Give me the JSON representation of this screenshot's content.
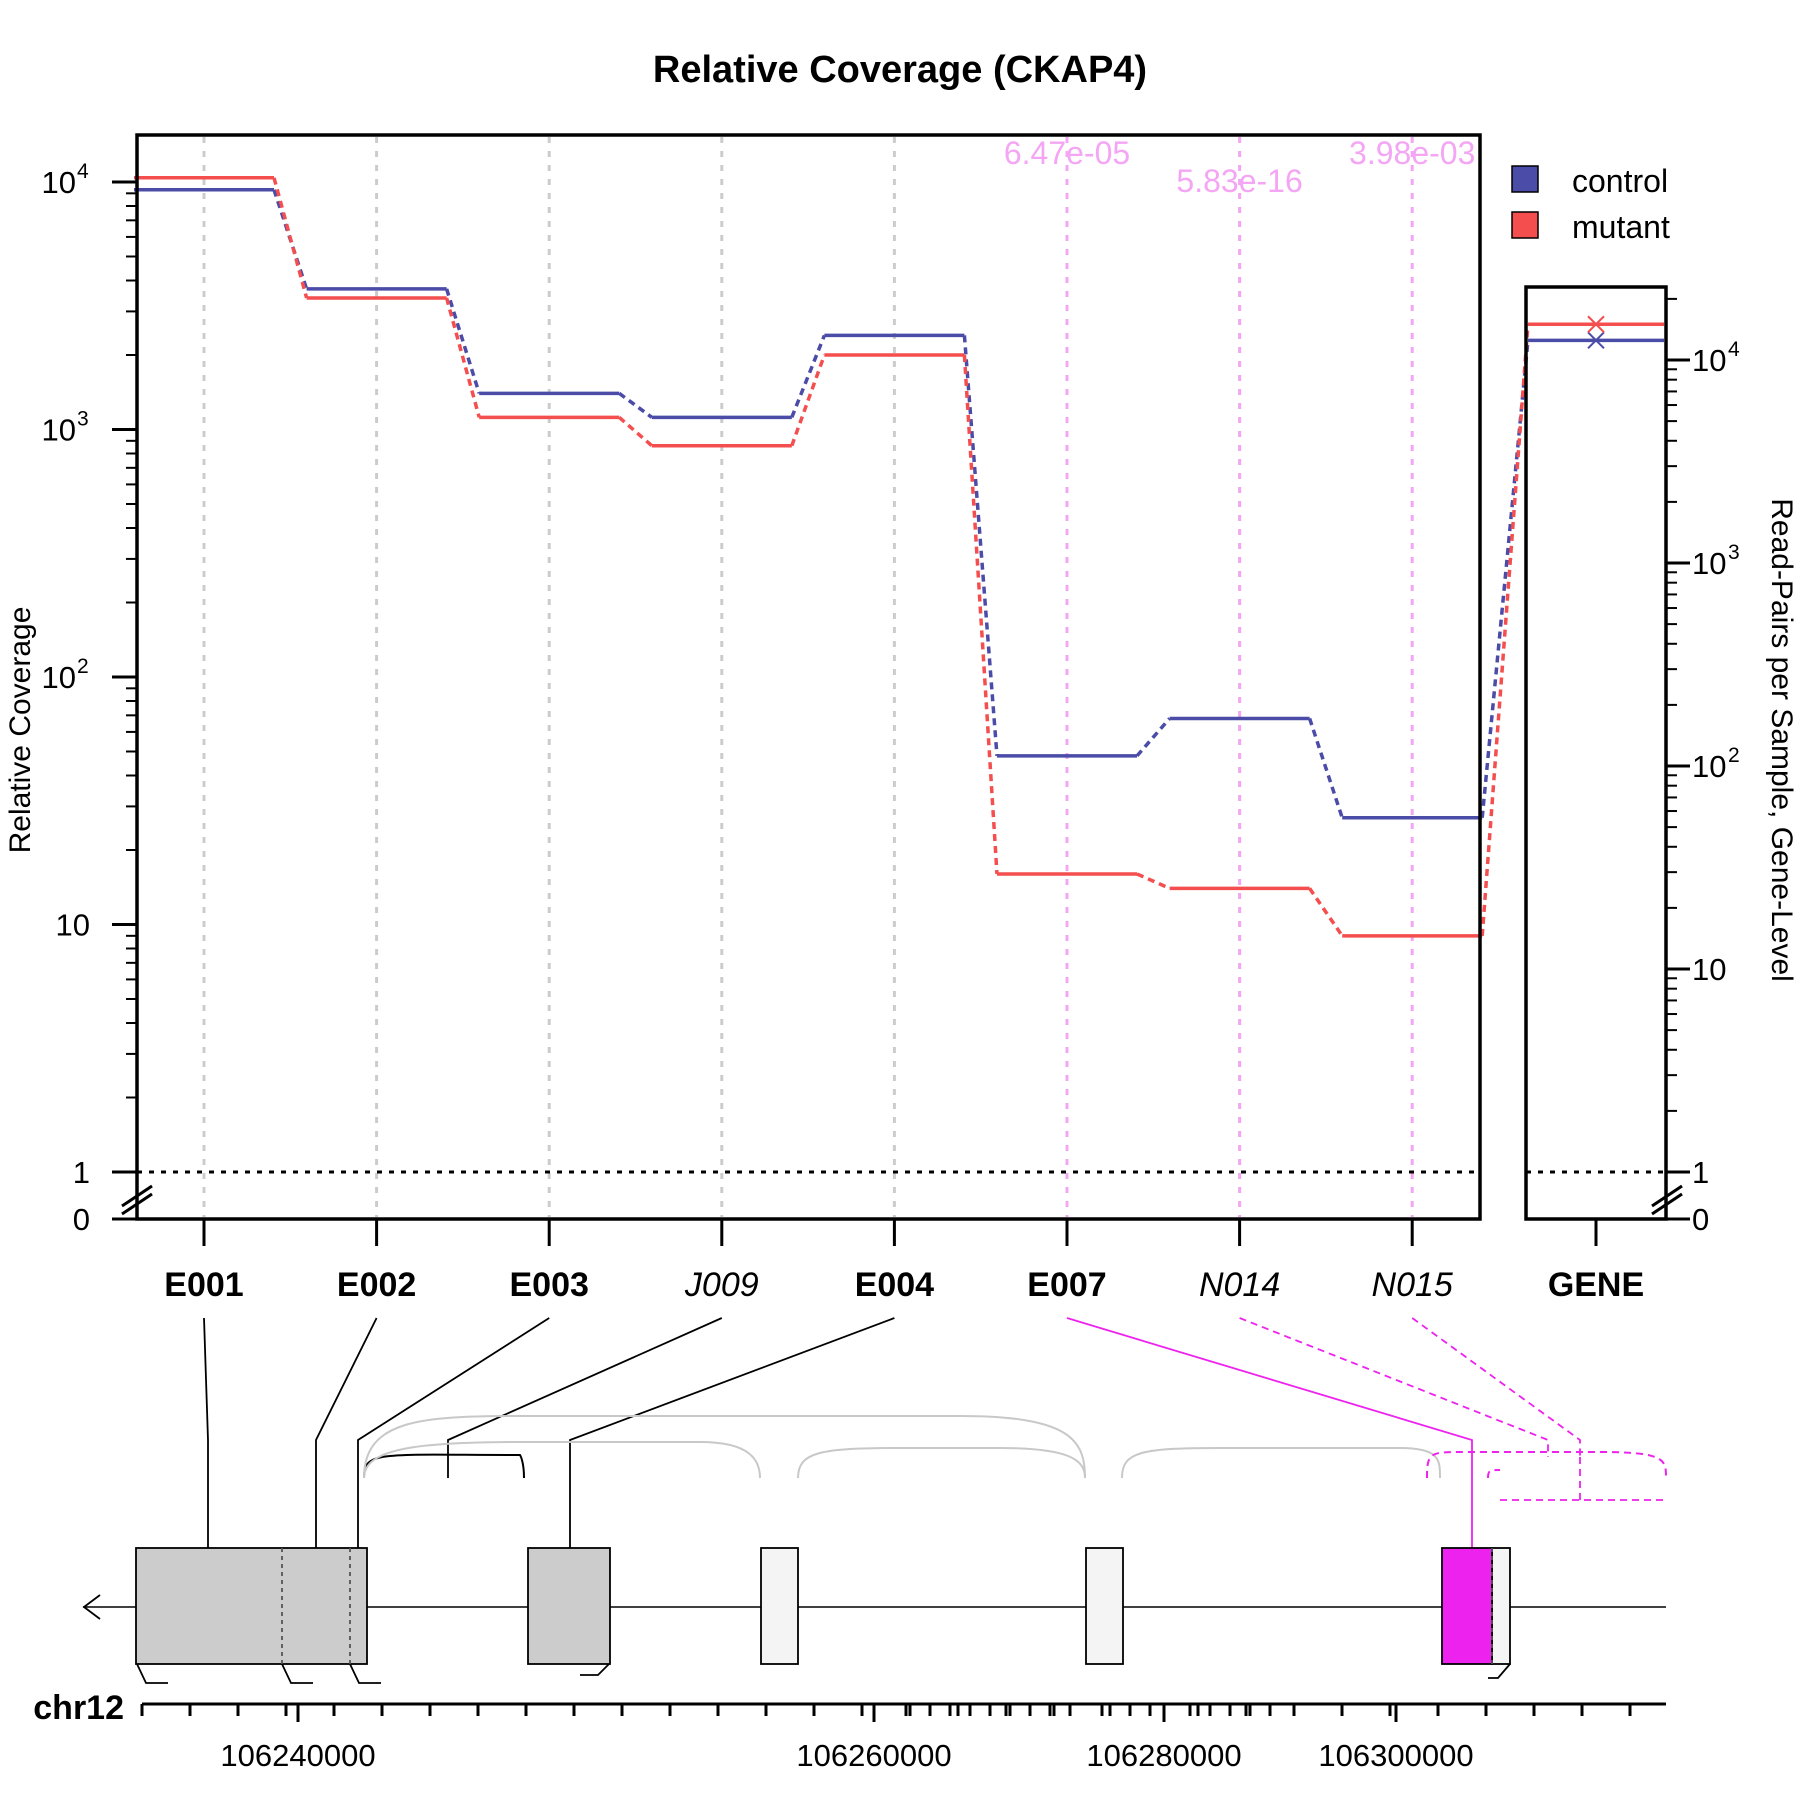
{
  "chart_data": {
    "type": "line",
    "title": "Relative Coverage (CKAP4)",
    "ylabel": "Relative Coverage",
    "y2label": "Read-Pairs per Sample, Gene-Level",
    "y_scale": "log",
    "y_ticklabels": [
      "0",
      "1",
      "10",
      "10",
      "10",
      "10"
    ],
    "y_tick_exponents": [
      "",
      "",
      "",
      "2",
      "3",
      "4"
    ],
    "y2_ticklabels": [
      "0",
      "1",
      "10",
      "10",
      "10",
      "10"
    ],
    "y2_tick_exponents": [
      "",
      "",
      "",
      "2",
      "3",
      "4"
    ],
    "categories": [
      "E001",
      "E002",
      "E003",
      "J009",
      "E004",
      "E007",
      "N014",
      "N015"
    ],
    "category_italic": [
      false,
      false,
      false,
      true,
      false,
      false,
      true,
      true
    ],
    "category_highlight": [
      false,
      false,
      false,
      false,
      false,
      true,
      true,
      true
    ],
    "series": [
      {
        "name": "control",
        "color": "#4B4BA8",
        "values": [
          9300,
          3700,
          1400,
          1120,
          2400,
          48,
          68,
          27
        ]
      },
      {
        "name": "mutant",
        "color": "#F44E4E",
        "values": [
          10400,
          3400,
          1120,
          860,
          2000,
          16,
          14,
          9
        ]
      }
    ],
    "gene_panel": {
      "category": "GENE",
      "control": 12500,
      "mutant": 15000
    },
    "pvalue_labels": [
      {
        "category": "E007",
        "text": "6.47e-05"
      },
      {
        "category": "N014",
        "text": "5.83e-16"
      },
      {
        "category": "N015",
        "text": "3.98e-03"
      }
    ],
    "reference_line": 1,
    "legend_position": "top-right",
    "highlight_color": "#EE22EE",
    "pvalue_color": "#F4A6F4",
    "genome": {
      "chromosome": "chr12",
      "tick_labels": [
        "106240000",
        "106260000",
        "106280000",
        "106300000"
      ]
    }
  }
}
